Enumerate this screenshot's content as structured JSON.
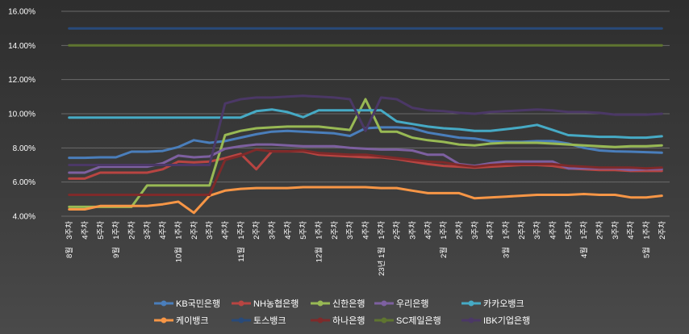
{
  "chart_data": {
    "type": "line",
    "title": "",
    "xlabel": "",
    "ylabel": "",
    "ylim": [
      4,
      16
    ],
    "ytick_labels": [
      "4.00%",
      "6.00%",
      "8.00%",
      "10.00%",
      "12.00%",
      "14.00%",
      "16.00%"
    ],
    "yticks": [
      4,
      6,
      8,
      10,
      12,
      14,
      16
    ],
    "grid": true,
    "legend_position": "bottom",
    "x": [
      "8월 3주차",
      "4주차",
      "5주차",
      "9월 1주차",
      "2주차",
      "3주차",
      "4주차",
      "10월 1주차",
      "2주차",
      "3주차",
      "4주차",
      "11월 1주차",
      "2주차",
      "3주차",
      "4주차",
      "5주차",
      "12월 1주차",
      "2주차",
      "3주차",
      "4주차",
      "23년 1월 1주차",
      "2주차",
      "3주차",
      "4주차",
      "2월 1주차",
      "2주차",
      "3주차",
      "4주차",
      "3월 1주차",
      "2주차",
      "3주차",
      "4주차",
      "5주차",
      "4월 1주차",
      "2주차",
      "3주차",
      "4주차",
      "5월 1주차",
      "2주차"
    ],
    "x_tick_lines": [
      [
        "8월",
        "3주차"
      ],
      [
        "",
        "4주차"
      ],
      [
        "",
        "5주차"
      ],
      [
        "9월",
        "1주차"
      ],
      [
        "",
        "2주차"
      ],
      [
        "",
        "3주차"
      ],
      [
        "",
        "4주차"
      ],
      [
        "10월",
        "1주차"
      ],
      [
        "",
        "2주차"
      ],
      [
        "",
        "3주차"
      ],
      [
        "",
        "4주차"
      ],
      [
        "11월",
        "1주차"
      ],
      [
        "",
        "2주차"
      ],
      [
        "",
        "3주차"
      ],
      [
        "",
        "4주차"
      ],
      [
        "",
        "5주차"
      ],
      [
        "12월",
        "1주차"
      ],
      [
        "",
        "2주차"
      ],
      [
        "",
        "3주차"
      ],
      [
        "",
        "4주차"
      ],
      [
        "23년 1월",
        "1주차"
      ],
      [
        "",
        "2주차"
      ],
      [
        "",
        "3주차"
      ],
      [
        "",
        "4주차"
      ],
      [
        "2월",
        "1주차"
      ],
      [
        "",
        "2주차"
      ],
      [
        "",
        "3주차"
      ],
      [
        "",
        "4주차"
      ],
      [
        "3월",
        "1주차"
      ],
      [
        "",
        "2주차"
      ],
      [
        "",
        "3주차"
      ],
      [
        "",
        "4주차"
      ],
      [
        "",
        "5주차"
      ],
      [
        "4월",
        "1주차"
      ],
      [
        "",
        "2주차"
      ],
      [
        "",
        "3주차"
      ],
      [
        "",
        "4주차"
      ],
      [
        "5월",
        "1주차"
      ],
      [
        "",
        "2주차"
      ]
    ],
    "series": [
      {
        "name": "KB국민은행",
        "color": "#4a7ebb",
        "values": [
          7.42,
          7.42,
          7.45,
          7.45,
          7.78,
          7.78,
          7.82,
          8.05,
          8.45,
          8.3,
          8.4,
          8.6,
          8.8,
          8.95,
          9.0,
          8.95,
          8.9,
          8.85,
          8.7,
          9.15,
          9.2,
          9.2,
          9.15,
          8.9,
          8.75,
          8.6,
          8.55,
          8.4,
          8.35,
          8.35,
          8.4,
          8.4,
          8.25,
          8.0,
          7.85,
          7.8,
          7.78,
          7.75,
          7.72
        ]
      },
      {
        "name": "NH농협은행",
        "color": "#b84542",
        "values": [
          6.2,
          6.2,
          6.55,
          6.55,
          6.55,
          6.55,
          6.75,
          7.2,
          7.15,
          7.2,
          7.4,
          7.65,
          6.75,
          7.8,
          7.8,
          7.8,
          7.6,
          7.55,
          7.5,
          7.45,
          7.45,
          7.35,
          7.2,
          7.05,
          6.95,
          6.9,
          6.85,
          6.9,
          6.95,
          7.0,
          7.0,
          6.95,
          6.8,
          6.75,
          6.7,
          6.7,
          6.65,
          6.65,
          6.65
        ]
      },
      {
        "name": "신한은행",
        "color": "#98b954",
        "values": [
          4.55,
          4.55,
          4.55,
          4.55,
          4.55,
          5.8,
          5.8,
          5.8,
          5.8,
          5.8,
          8.75,
          9.0,
          9.15,
          9.2,
          9.25,
          9.25,
          9.25,
          9.15,
          9.05,
          10.85,
          8.95,
          8.95,
          8.6,
          8.45,
          8.35,
          8.2,
          8.15,
          8.25,
          8.3,
          8.3,
          8.3,
          8.25,
          8.2,
          8.15,
          8.1,
          8.05,
          8.1,
          8.1,
          8.15
        ]
      },
      {
        "name": "우리은행",
        "color": "#7d60a0",
        "values": [
          6.55,
          6.55,
          6.9,
          6.9,
          6.9,
          6.9,
          7.1,
          7.55,
          7.45,
          7.5,
          7.95,
          8.1,
          8.2,
          8.2,
          8.15,
          8.1,
          8.1,
          8.1,
          8.0,
          7.95,
          7.9,
          7.9,
          7.85,
          7.6,
          7.6,
          7.05,
          6.95,
          7.1,
          7.2,
          7.2,
          7.2,
          7.2,
          6.8,
          6.8,
          6.8,
          6.8,
          6.7,
          6.75,
          6.75
        ]
      },
      {
        "name": "카카오뱅크",
        "color": "#46aac5",
        "values": [
          9.78,
          9.78,
          9.78,
          9.78,
          9.78,
          9.78,
          9.78,
          9.78,
          9.78,
          9.78,
          9.78,
          9.78,
          10.15,
          10.25,
          10.1,
          9.8,
          10.2,
          10.2,
          10.2,
          10.2,
          10.2,
          9.55,
          9.4,
          9.25,
          9.15,
          9.1,
          9.0,
          9.0,
          9.1,
          9.2,
          9.35,
          9.05,
          8.75,
          8.7,
          8.65,
          8.65,
          8.6,
          8.6,
          8.68
        ]
      },
      {
        "name": "케이뱅크",
        "color": "#f79646",
        "values": [
          4.4,
          4.4,
          4.6,
          4.6,
          4.6,
          4.6,
          4.7,
          4.85,
          4.2,
          5.2,
          5.5,
          5.6,
          5.65,
          5.65,
          5.65,
          5.7,
          5.7,
          5.7,
          5.7,
          5.7,
          5.65,
          5.65,
          5.5,
          5.35,
          5.35,
          5.35,
          5.05,
          5.1,
          5.15,
          5.2,
          5.25,
          5.25,
          5.25,
          5.3,
          5.25,
          5.25,
          5.1,
          5.1,
          5.2
        ]
      },
      {
        "name": "토스뱅크",
        "color": "#284a7a",
        "values": [
          15.0,
          15.0,
          15.0,
          15.0,
          15.0,
          15.0,
          15.0,
          15.0,
          15.0,
          15.0,
          15.0,
          15.0,
          15.0,
          15.0,
          15.0,
          15.0,
          15.0,
          15.0,
          15.0,
          15.0,
          15.0,
          15.0,
          15.0,
          15.0,
          15.0,
          15.0,
          15.0,
          15.0,
          15.0,
          15.0,
          15.0,
          15.0,
          15.0,
          15.0,
          15.0,
          15.0,
          15.0,
          15.0,
          15.0
        ]
      },
      {
        "name": "하나은행",
        "color": "#7f2a2a",
        "values": [
          5.25,
          5.25,
          5.25,
          5.25,
          5.25,
          5.25,
          5.25,
          5.25,
          5.25,
          5.25,
          7.3,
          7.55,
          7.9,
          7.8,
          7.8,
          7.85,
          7.7,
          7.65,
          7.6,
          7.6,
          7.5,
          7.4,
          7.3,
          7.2,
          7.15,
          7.0,
          6.9,
          7.0,
          7.05,
          7.05,
          7.05,
          7.05,
          6.95,
          6.9,
          6.85,
          6.85,
          6.85,
          6.8,
          6.85
        ]
      },
      {
        "name": "SC제일은행",
        "color": "#5f7530",
        "values": [
          14.0,
          14.0,
          14.0,
          14.0,
          14.0,
          14.0,
          14.0,
          14.0,
          14.0,
          14.0,
          14.0,
          14.0,
          14.0,
          14.0,
          14.0,
          14.0,
          14.0,
          14.0,
          14.0,
          14.0,
          14.0,
          14.0,
          14.0,
          14.0,
          14.0,
          14.0,
          14.0,
          14.0,
          14.0,
          14.0,
          14.0,
          14.0,
          14.0,
          14.0,
          14.0,
          14.0,
          14.0,
          14.0,
          14.0
        ]
      },
      {
        "name": "IBK기업은행",
        "color": "#4b3866",
        "values": [
          7.0,
          7.0,
          7.0,
          7.0,
          7.0,
          7.0,
          7.0,
          7.0,
          7.0,
          7.0,
          10.6,
          10.85,
          10.95,
          10.95,
          11.0,
          11.05,
          11.0,
          10.95,
          10.85,
          9.0,
          10.95,
          10.85,
          10.35,
          10.2,
          10.15,
          10.05,
          10.0,
          10.1,
          10.15,
          10.2,
          10.25,
          10.2,
          10.1,
          10.1,
          10.05,
          9.95,
          9.95,
          9.95,
          10.0
        ]
      }
    ]
  }
}
